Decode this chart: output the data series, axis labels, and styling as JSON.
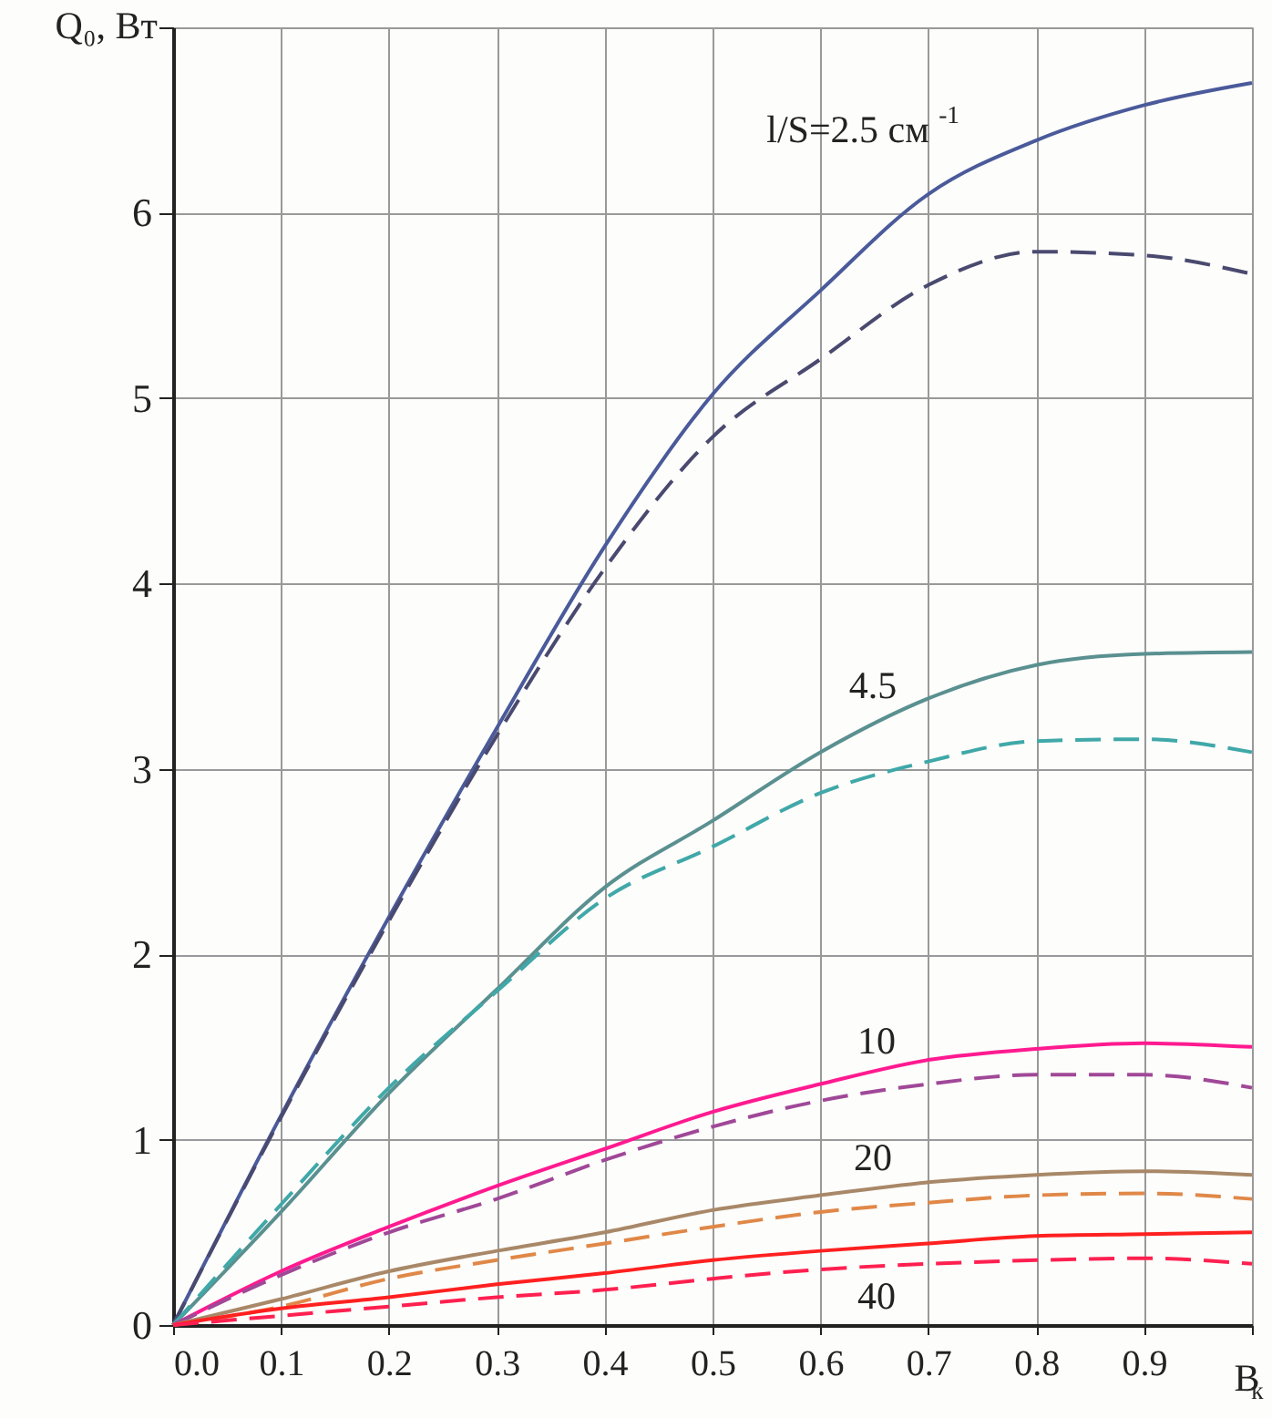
{
  "chart_data": {
    "type": "line",
    "xlabel": "B$_{к}$",
    "ylabel": "Q₀, Вт",
    "x": [
      0,
      0.1,
      0.2,
      0.3,
      0.4,
      0.5,
      0.6,
      0.7,
      0.8,
      0.9,
      1.0
    ],
    "series": [
      {
        "color": "#4a5a9a",
        "values": [
          0,
          1.13,
          2.2,
          3.22,
          4.2,
          5.02,
          5.58,
          6.1,
          6.39,
          6.58,
          6.7
        ]
      },
      {
        "color": "#4a4a70",
        "line_style": "dashed",
        "values": [
          0,
          1.12,
          2.18,
          3.18,
          4.08,
          4.79,
          5.21,
          5.61,
          5.79,
          5.77,
          5.67
        ]
      },
      {
        "color": "#5a9090",
        "values": [
          0,
          0.61,
          1.25,
          1.81,
          2.36,
          2.72,
          3.09,
          3.38,
          3.56,
          3.62,
          3.63
        ]
      },
      {
        "color": "#40a8a8",
        "line_style": "dashed",
        "values": [
          0,
          0.65,
          1.28,
          1.8,
          2.3,
          2.58,
          2.87,
          3.04,
          3.15,
          3.16,
          3.09
        ]
      },
      {
        "color": "#ff1a90",
        "values": [
          0,
          0.29,
          0.53,
          0.75,
          0.95,
          1.15,
          1.3,
          1.43,
          1.49,
          1.52,
          1.5
        ]
      },
      {
        "color": "#a04898",
        "line_style": "dashed",
        "values": [
          0,
          0.27,
          0.5,
          0.68,
          0.89,
          1.07,
          1.21,
          1.3,
          1.35,
          1.35,
          1.28
        ]
      },
      {
        "color": "#a88868",
        "values": [
          0,
          0.14,
          0.29,
          0.4,
          0.5,
          0.62,
          0.7,
          0.77,
          0.81,
          0.83,
          0.81
        ]
      },
      {
        "color": "#e08848",
        "line_style": "dashed",
        "values": [
          0,
          0.1,
          0.25,
          0.35,
          0.44,
          0.53,
          0.61,
          0.66,
          0.7,
          0.71,
          0.68
        ]
      },
      {
        "color": "#ff2020",
        "values": [
          0,
          0.09,
          0.15,
          0.22,
          0.28,
          0.35,
          0.4,
          0.44,
          0.48,
          0.49,
          0.5
        ]
      },
      {
        "color": "#ff2050",
        "line_style": "dashed",
        "values": [
          0,
          0.05,
          0.1,
          0.15,
          0.19,
          0.25,
          0.3,
          0.33,
          0.35,
          0.36,
          0.33
        ]
      }
    ],
    "annotations": [
      "l/S=2.5 см$^{-1}$",
      "4.5",
      "10",
      "20",
      "40"
    ],
    "xlim": [
      0,
      1.0
    ],
    "xticks": [
      {
        "value": 0,
        "label": "0.0"
      },
      {
        "value": 0.1,
        "label": "0.1"
      },
      {
        "value": 0.2,
        "label": "0.2"
      },
      {
        "value": 0.3,
        "label": "0.3"
      },
      {
        "value": 0.4,
        "label": "0.4"
      },
      {
        "value": 0.5,
        "label": "0.5"
      },
      {
        "value": 0.6,
        "label": "0.6"
      },
      {
        "value": 0.7,
        "label": "0.7"
      },
      {
        "value": 0.8,
        "label": "0.8"
      },
      {
        "value": 0.9,
        "label": "0.9"
      },
      {
        "value": 1.0,
        "label": null
      }
    ],
    "ylim": [
      0,
      7
    ],
    "yticks": [
      0,
      1,
      2,
      3,
      4,
      5,
      6,
      {
        "value": 7,
        "label": null
      }
    ],
    "grid": true
  }
}
